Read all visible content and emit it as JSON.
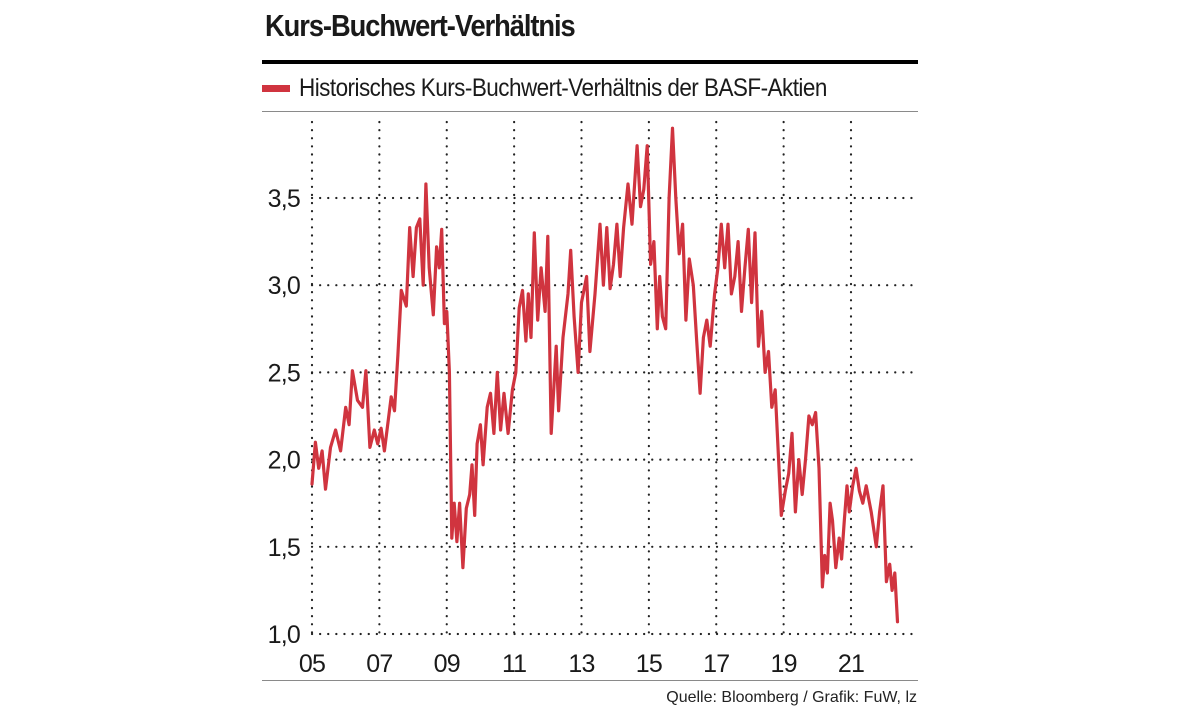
{
  "chart_data": {
    "type": "line",
    "title": "Kurs-Buchwert-Verhältnis",
    "series": [
      {
        "name": "Historisches Kurs-Buchwert-Verhältnis der BASF-Aktien",
        "color": "#d0343f",
        "points": [
          [
            2005.0,
            1.86
          ],
          [
            2005.1,
            2.1
          ],
          [
            2005.2,
            1.95
          ],
          [
            2005.3,
            2.05
          ],
          [
            2005.4,
            1.83
          ],
          [
            2005.55,
            2.07
          ],
          [
            2005.7,
            2.17
          ],
          [
            2005.85,
            2.05
          ],
          [
            2006.0,
            2.3
          ],
          [
            2006.1,
            2.2
          ],
          [
            2006.2,
            2.51
          ],
          [
            2006.35,
            2.34
          ],
          [
            2006.5,
            2.3
          ],
          [
            2006.6,
            2.51
          ],
          [
            2006.72,
            2.07
          ],
          [
            2006.85,
            2.17
          ],
          [
            2006.95,
            2.09
          ],
          [
            2007.05,
            2.18
          ],
          [
            2007.15,
            2.05
          ],
          [
            2007.35,
            2.36
          ],
          [
            2007.45,
            2.28
          ],
          [
            2007.55,
            2.6
          ],
          [
            2007.65,
            2.97
          ],
          [
            2007.8,
            2.88
          ],
          [
            2007.9,
            3.33
          ],
          [
            2008.0,
            3.05
          ],
          [
            2008.1,
            3.33
          ],
          [
            2008.2,
            3.38
          ],
          [
            2008.3,
            3.0
          ],
          [
            2008.38,
            3.58
          ],
          [
            2008.48,
            3.1
          ],
          [
            2008.6,
            2.83
          ],
          [
            2008.7,
            3.22
          ],
          [
            2008.78,
            3.1
          ],
          [
            2008.85,
            3.32
          ],
          [
            2008.93,
            2.78
          ],
          [
            2009.0,
            2.85
          ],
          [
            2009.08,
            2.5
          ],
          [
            2009.15,
            1.55
          ],
          [
            2009.22,
            1.75
          ],
          [
            2009.3,
            1.53
          ],
          [
            2009.38,
            1.75
          ],
          [
            2009.48,
            1.38
          ],
          [
            2009.58,
            1.72
          ],
          [
            2009.68,
            1.8
          ],
          [
            2009.75,
            1.97
          ],
          [
            2009.83,
            1.68
          ],
          [
            2009.9,
            2.09
          ],
          [
            2010.0,
            2.2
          ],
          [
            2010.08,
            1.97
          ],
          [
            2010.2,
            2.3
          ],
          [
            2010.3,
            2.38
          ],
          [
            2010.4,
            2.15
          ],
          [
            2010.5,
            2.5
          ],
          [
            2010.6,
            2.17
          ],
          [
            2010.7,
            2.38
          ],
          [
            2010.82,
            2.15
          ],
          [
            2010.95,
            2.4
          ],
          [
            2011.05,
            2.5
          ],
          [
            2011.15,
            2.87
          ],
          [
            2011.25,
            2.97
          ],
          [
            2011.35,
            2.68
          ],
          [
            2011.42,
            2.95
          ],
          [
            2011.5,
            2.7
          ],
          [
            2011.6,
            3.3
          ],
          [
            2011.7,
            2.8
          ],
          [
            2011.8,
            3.1
          ],
          [
            2011.92,
            2.85
          ],
          [
            2012.0,
            3.28
          ],
          [
            2012.1,
            2.15
          ],
          [
            2012.25,
            2.65
          ],
          [
            2012.32,
            2.28
          ],
          [
            2012.45,
            2.7
          ],
          [
            2012.6,
            2.95
          ],
          [
            2012.68,
            3.2
          ],
          [
            2012.78,
            2.82
          ],
          [
            2012.9,
            2.5
          ],
          [
            2013.0,
            2.9
          ],
          [
            2013.15,
            3.05
          ],
          [
            2013.25,
            2.62
          ],
          [
            2013.4,
            2.95
          ],
          [
            2013.55,
            3.35
          ],
          [
            2013.65,
            3.0
          ],
          [
            2013.75,
            3.33
          ],
          [
            2013.85,
            2.98
          ],
          [
            2013.95,
            3.12
          ],
          [
            2014.05,
            3.35
          ],
          [
            2014.15,
            3.05
          ],
          [
            2014.25,
            3.33
          ],
          [
            2014.38,
            3.58
          ],
          [
            2014.5,
            3.35
          ],
          [
            2014.65,
            3.8
          ],
          [
            2014.75,
            3.45
          ],
          [
            2014.85,
            3.55
          ],
          [
            2014.95,
            3.8
          ],
          [
            2015.05,
            3.12
          ],
          [
            2015.15,
            3.25
          ],
          [
            2015.25,
            2.75
          ],
          [
            2015.32,
            3.05
          ],
          [
            2015.4,
            2.82
          ],
          [
            2015.5,
            2.75
          ],
          [
            2015.6,
            3.5
          ],
          [
            2015.7,
            3.9
          ],
          [
            2015.8,
            3.5
          ],
          [
            2015.9,
            3.18
          ],
          [
            2016.0,
            3.35
          ],
          [
            2016.1,
            2.8
          ],
          [
            2016.2,
            3.15
          ],
          [
            2016.32,
            3.0
          ],
          [
            2016.42,
            2.68
          ],
          [
            2016.52,
            2.38
          ],
          [
            2016.62,
            2.7
          ],
          [
            2016.72,
            2.8
          ],
          [
            2016.82,
            2.65
          ],
          [
            2016.95,
            2.95
          ],
          [
            2017.05,
            3.1
          ],
          [
            2017.15,
            3.35
          ],
          [
            2017.25,
            3.1
          ],
          [
            2017.35,
            3.35
          ],
          [
            2017.45,
            2.95
          ],
          [
            2017.55,
            3.05
          ],
          [
            2017.65,
            3.25
          ],
          [
            2017.75,
            2.85
          ],
          [
            2017.85,
            3.1
          ],
          [
            2017.95,
            3.32
          ],
          [
            2018.05,
            2.9
          ],
          [
            2018.15,
            3.3
          ],
          [
            2018.25,
            2.65
          ],
          [
            2018.35,
            2.85
          ],
          [
            2018.45,
            2.5
          ],
          [
            2018.55,
            2.62
          ],
          [
            2018.65,
            2.3
          ],
          [
            2018.75,
            2.4
          ],
          [
            2018.85,
            2.0
          ],
          [
            2018.93,
            1.68
          ],
          [
            2019.05,
            1.82
          ],
          [
            2019.15,
            1.92
          ],
          [
            2019.25,
            2.15
          ],
          [
            2019.35,
            1.7
          ],
          [
            2019.45,
            2.0
          ],
          [
            2019.55,
            1.8
          ],
          [
            2019.65,
            2.0
          ],
          [
            2019.75,
            2.25
          ],
          [
            2019.85,
            2.2
          ],
          [
            2019.95,
            2.27
          ],
          [
            2020.05,
            1.95
          ],
          [
            2020.15,
            1.27
          ],
          [
            2020.22,
            1.45
          ],
          [
            2020.3,
            1.35
          ],
          [
            2020.38,
            1.75
          ],
          [
            2020.45,
            1.65
          ],
          [
            2020.55,
            1.38
          ],
          [
            2020.65,
            1.55
          ],
          [
            2020.72,
            1.43
          ],
          [
            2020.8,
            1.65
          ],
          [
            2020.88,
            1.85
          ],
          [
            2020.95,
            1.7
          ],
          [
            2021.05,
            1.85
          ],
          [
            2021.15,
            1.95
          ],
          [
            2021.25,
            1.82
          ],
          [
            2021.35,
            1.75
          ],
          [
            2021.45,
            1.85
          ],
          [
            2021.6,
            1.7
          ],
          [
            2021.75,
            1.5
          ],
          [
            2021.85,
            1.7
          ],
          [
            2021.95,
            1.85
          ],
          [
            2022.05,
            1.3
          ],
          [
            2022.15,
            1.4
          ],
          [
            2022.22,
            1.25
          ],
          [
            2022.3,
            1.35
          ],
          [
            2022.38,
            1.07
          ]
        ]
      }
    ],
    "x_ticks": [
      {
        "value": 2005,
        "label": "05"
      },
      {
        "value": 2007,
        "label": "07"
      },
      {
        "value": 2009,
        "label": "09"
      },
      {
        "value": 2011,
        "label": "11"
      },
      {
        "value": 2013,
        "label": "13"
      },
      {
        "value": 2015,
        "label": "15"
      },
      {
        "value": 2017,
        "label": "17"
      },
      {
        "value": 2019,
        "label": "19"
      },
      {
        "value": 2021,
        "label": "21"
      }
    ],
    "y_ticks": [
      {
        "value": 1.0,
        "label": "1,0"
      },
      {
        "value": 1.5,
        "label": "1,5"
      },
      {
        "value": 2.0,
        "label": "2,0"
      },
      {
        "value": 2.5,
        "label": "2,5"
      },
      {
        "value": 3.0,
        "label": "3,0"
      },
      {
        "value": 3.5,
        "label": "3,5"
      }
    ],
    "xlim": [
      2005,
      2023
    ],
    "ylim": [
      1.0,
      3.95
    ],
    "grid": "dotted",
    "xlabel": "",
    "ylabel": ""
  },
  "footer": {
    "source": "Quelle: Bloomberg / Grafik: FuW, lz"
  }
}
